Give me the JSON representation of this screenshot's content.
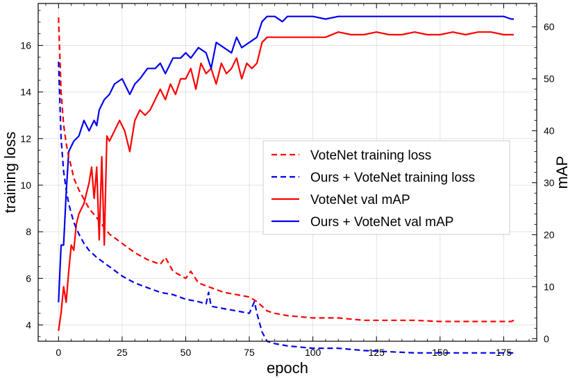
{
  "chart_data": {
    "type": "line",
    "title": "",
    "xlabel": "epoch",
    "ylabel_left": "training loss",
    "ylabel_right": "mAP",
    "xlim": [
      -8,
      188
    ],
    "ylim_left": [
      3.3,
      17.8
    ],
    "ylim_right": [
      -0.5,
      64.5
    ],
    "x_ticks": [
      0,
      25,
      50,
      75,
      100,
      125,
      150,
      175
    ],
    "y_ticks_left": [
      4,
      6,
      8,
      10,
      12,
      14,
      16
    ],
    "y_ticks_right": [
      0,
      10,
      20,
      30,
      40,
      50,
      60
    ],
    "grid": true,
    "legend_position": "center-right",
    "series": [
      {
        "name": "VoteNet training loss",
        "axis": "left",
        "color": "#ff0000",
        "dash": true,
        "x": [
          0,
          1,
          2,
          3,
          4,
          5,
          6,
          8,
          10,
          12,
          15,
          20,
          25,
          30,
          35,
          40,
          42,
          45,
          50,
          52,
          55,
          60,
          65,
          70,
          75,
          78,
          80,
          82,
          85,
          90,
          100,
          110,
          120,
          130,
          140,
          150,
          160,
          170,
          178,
          179
        ],
        "y": [
          17.2,
          14.0,
          12.6,
          11.8,
          11.2,
          10.8,
          10.3,
          9.8,
          9.4,
          9.0,
          8.6,
          7.9,
          7.5,
          7.1,
          6.8,
          6.6,
          6.9,
          6.3,
          6.0,
          6.3,
          5.8,
          5.6,
          5.4,
          5.3,
          5.2,
          5.0,
          4.8,
          4.6,
          4.5,
          4.4,
          4.3,
          4.3,
          4.2,
          4.2,
          4.2,
          4.15,
          4.15,
          4.15,
          4.15,
          4.2
        ]
      },
      {
        "name": "Ours + VoteNet training loss",
        "axis": "left",
        "color": "#0000ee",
        "dash": true,
        "x": [
          0,
          1,
          2,
          3,
          4,
          5,
          6,
          8,
          10,
          12,
          15,
          20,
          25,
          30,
          35,
          40,
          45,
          50,
          55,
          58,
          59,
          60,
          65,
          70,
          75,
          77,
          78,
          80,
          82,
          85,
          90,
          100,
          110,
          120,
          130,
          140,
          150,
          160,
          170,
          178,
          179
        ],
        "y": [
          15.3,
          12.0,
          10.6,
          9.8,
          9.2,
          8.8,
          8.4,
          7.9,
          7.5,
          7.2,
          6.9,
          6.5,
          6.1,
          5.8,
          5.6,
          5.4,
          5.3,
          5.1,
          5.0,
          4.9,
          5.4,
          4.8,
          4.7,
          4.6,
          4.5,
          5.0,
          4.5,
          3.7,
          3.3,
          3.2,
          3.1,
          3.0,
          3.0,
          2.9,
          2.85,
          2.8,
          2.8,
          2.8,
          2.8,
          2.8,
          2.8
        ]
      },
      {
        "name": "VoteNet val mAP",
        "axis": "right",
        "color": "#ff0000",
        "dash": false,
        "x": [
          0,
          1,
          2,
          3,
          4,
          5,
          6,
          7,
          8,
          10,
          12,
          13,
          14,
          15,
          16,
          17,
          18,
          19,
          20,
          22,
          24,
          26,
          28,
          30,
          32,
          34,
          36,
          38,
          40,
          42,
          44,
          46,
          48,
          50,
          52,
          54,
          56,
          58,
          60,
          62,
          64,
          66,
          68,
          70,
          72,
          74,
          76,
          78,
          80,
          82,
          85,
          90,
          95,
          100,
          105,
          110,
          115,
          120,
          125,
          130,
          135,
          140,
          145,
          150,
          155,
          160,
          165,
          170,
          175,
          178,
          179
        ],
        "y": [
          1.5,
          5,
          10,
          7,
          13,
          18,
          17,
          22,
          24,
          26,
          30,
          33,
          27,
          33,
          19,
          35,
          18,
          39,
          38,
          40,
          42,
          40,
          36,
          42,
          44,
          43,
          44,
          46,
          48,
          46,
          49,
          47,
          50,
          50,
          52,
          48,
          53,
          51,
          52,
          49,
          53,
          51,
          52,
          54,
          50,
          53,
          52,
          53,
          57,
          58,
          58,
          58,
          58,
          58,
          58,
          59,
          58.5,
          58.5,
          59,
          58.5,
          58.5,
          59,
          58.5,
          58.5,
          59,
          58.5,
          59,
          59,
          58.5,
          58.5,
          58.5
        ]
      },
      {
        "name": "Ours + VoteNet val mAP",
        "axis": "right",
        "color": "#0000ee",
        "dash": false,
        "x": [
          0,
          1,
          2,
          3,
          4,
          5,
          6,
          8,
          10,
          12,
          14,
          15,
          16,
          18,
          20,
          22,
          25,
          28,
          30,
          32,
          35,
          38,
          40,
          42,
          45,
          48,
          50,
          52,
          55,
          58,
          60,
          62,
          65,
          68,
          70,
          72,
          75,
          78,
          80,
          82,
          85,
          88,
          90,
          95,
          100,
          105,
          110,
          115,
          120,
          125,
          130,
          135,
          140,
          145,
          150,
          155,
          160,
          165,
          170,
          175,
          178,
          179
        ],
        "y": [
          7,
          18,
          18,
          28,
          36,
          37,
          38,
          39,
          42,
          40,
          42,
          41,
          44,
          46,
          47,
          49,
          50,
          47,
          49,
          50,
          52,
          52,
          53,
          51,
          54,
          54,
          55,
          54,
          56,
          55,
          52,
          57,
          56,
          55,
          58,
          56,
          57,
          58,
          61,
          62,
          62,
          61,
          62,
          62,
          62,
          61.5,
          62,
          62,
          62,
          62,
          62,
          62,
          62,
          62,
          62,
          62,
          62,
          62,
          62,
          62,
          61.5,
          61.5
        ]
      }
    ]
  }
}
